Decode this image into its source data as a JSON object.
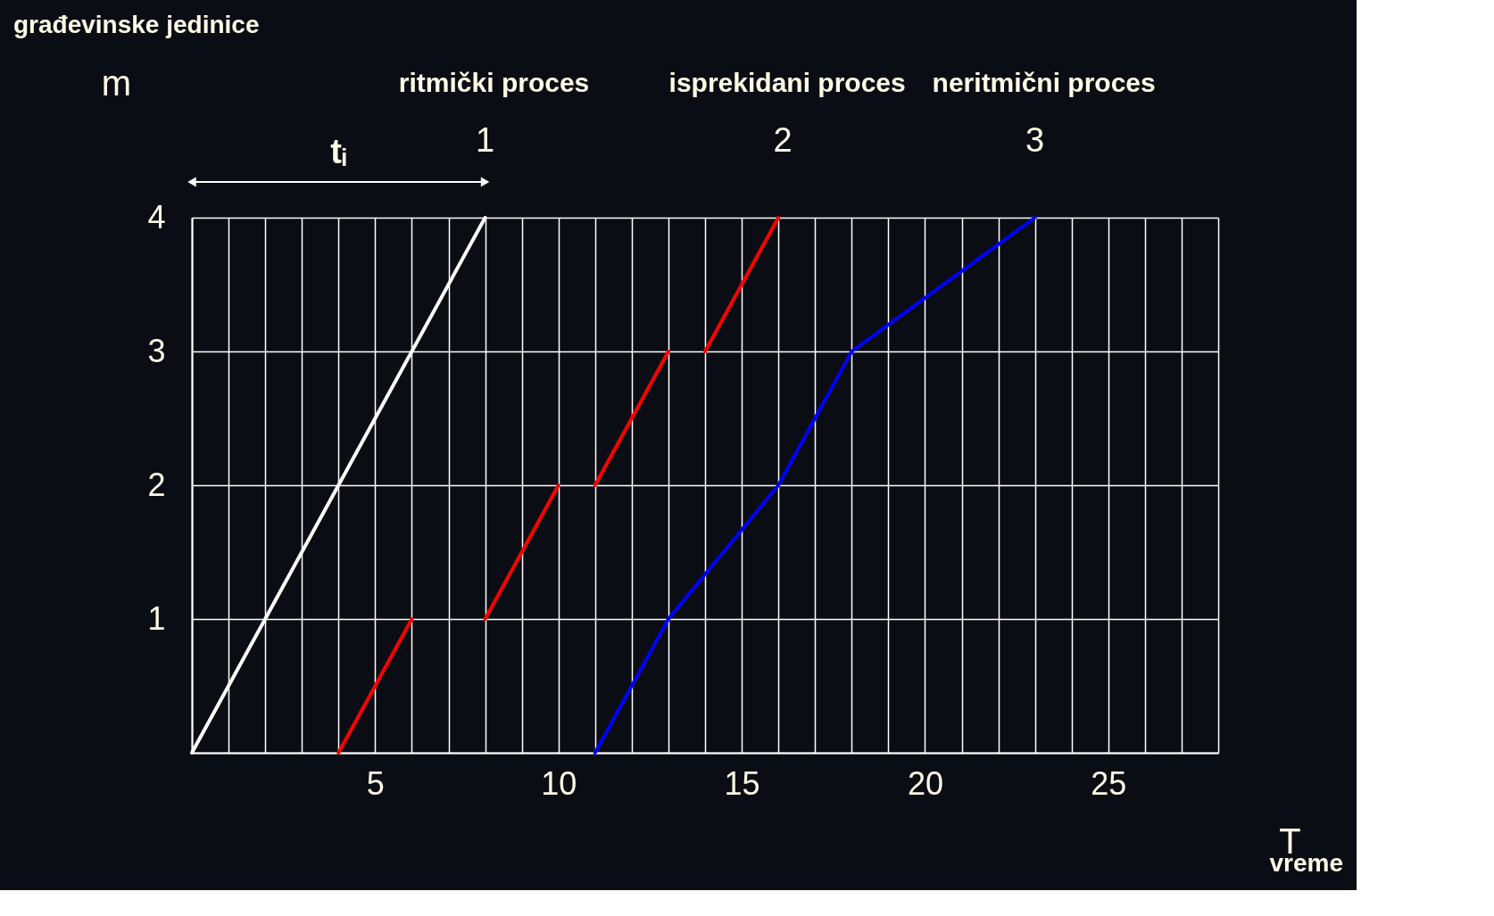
{
  "chart_data": {
    "type": "line",
    "xlabel": "T",
    "ylabel": "m",
    "xlim": [
      0,
      28
    ],
    "ylim": [
      0,
      4
    ],
    "xticks": [
      {
        "value": 0,
        "label": null
      },
      {
        "value": 1,
        "label": null
      },
      {
        "value": 2,
        "label": null
      },
      {
        "value": 3,
        "label": null
      },
      {
        "value": 4,
        "label": null
      },
      5,
      {
        "value": 6,
        "label": null
      },
      {
        "value": 7,
        "label": null
      },
      {
        "value": 8,
        "label": null
      },
      {
        "value": 9,
        "label": null
      },
      10,
      {
        "value": 11,
        "label": null
      },
      {
        "value": 12,
        "label": null
      },
      {
        "value": 13,
        "label": null
      },
      {
        "value": 14,
        "label": null
      },
      15,
      {
        "value": 16,
        "label": null
      },
      {
        "value": 17,
        "label": null
      },
      {
        "value": 18,
        "label": null
      },
      {
        "value": 19,
        "label": null
      },
      20,
      {
        "value": 21,
        "label": null
      },
      {
        "value": 22,
        "label": null
      },
      {
        "value": 23,
        "label": null
      },
      {
        "value": 24,
        "label": null
      },
      25,
      {
        "value": 26,
        "label": null
      },
      {
        "value": 27,
        "label": null
      },
      {
        "value": 28,
        "label": null
      }
    ],
    "yticks": [
      {
        "value": 0,
        "label": null
      },
      1,
      2,
      3,
      4
    ],
    "grid": true,
    "legend": false,
    "marker": "none",
    "line_style": "solid",
    "series": [
      {
        "color": "#ffffff",
        "x": [
          0,
          8
        ],
        "values": [
          0,
          4
        ]
      },
      {
        "color": "#ff0000",
        "x": [
          4,
          6,
          7,
          8,
          10,
          10.5,
          11,
          13,
          13.5,
          14,
          16
        ],
        "values": [
          0,
          1,
          null,
          1,
          2,
          null,
          2,
          3,
          null,
          3,
          4
        ]
      },
      {
        "color": "#0000ff",
        "x": [
          11,
          13,
          16,
          18,
          23
        ],
        "values": [
          0,
          1,
          2,
          3,
          4
        ]
      }
    ],
    "annotations": [
      "ritmički proces",
      "isprekidani proces",
      "neritmični proces",
      "1",
      "2",
      "3",
      "tᵢ",
      "građevinske jedinice",
      "vreme"
    ]
  }
}
